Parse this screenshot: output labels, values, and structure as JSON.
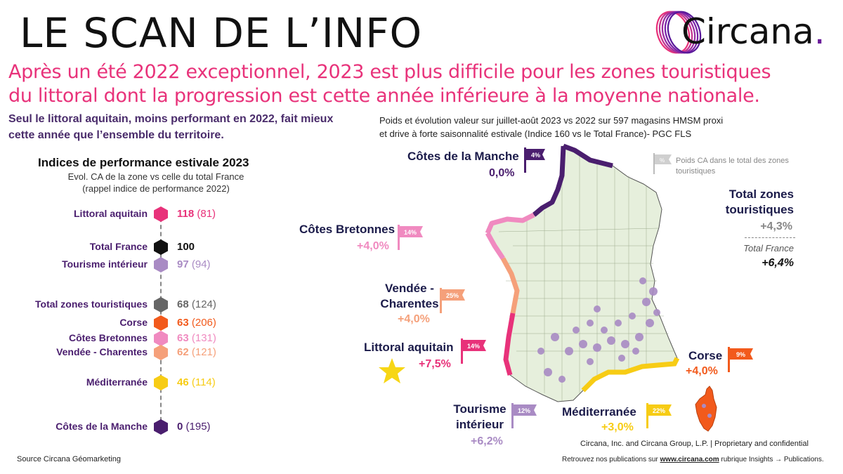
{
  "header": {
    "title": "LE SCAN DE L’INFO",
    "brand": "Circana",
    "brand_dot": "."
  },
  "headline": {
    "line1": "Après un été 2022 exceptionnel, 2023 est plus difficile pour les zones touristiques",
    "line2": "du littoral dont la progression est cette année inférieure à la moyenne nationale."
  },
  "subheadline": "Seul le littoral aquitain, moins performant en 2022, fait mieux cette année que l’ensemble du territoire.",
  "map_description": {
    "line1": "Poids et évolution valeur sur juillet-août 2023 vs 2022 sur 597 magasins HMSM proxi",
    "line2": "et drive à forte saisonnalité estivale (Indice 160 vs le Total France)- PGC FLS"
  },
  "indices": {
    "title": "Indices de performance estivale 2023",
    "subtitle": "Evol. CA de la zone vs celle du total France (rappel indice de performance 2022)",
    "rows": [
      {
        "label": "Littoral aquitain",
        "value": "118",
        "prev": "(81)",
        "color": "#e8327a"
      },
      {
        "label": "Total France",
        "value": "100",
        "prev": "",
        "color": "#111111"
      },
      {
        "label": "Tourisme intérieur",
        "value": "97",
        "prev": "(94)",
        "color": "#a98bc4"
      },
      {
        "label": "Total zones touristiques",
        "value": "68",
        "prev": "(124)",
        "color": "#666666"
      },
      {
        "label": "Corse",
        "value": "63",
        "prev": "(206)",
        "color": "#f25a1c"
      },
      {
        "label": "Côtes Bretonnes",
        "value": "63",
        "prev": "(131)",
        "color": "#f08ac0"
      },
      {
        "label": "Vendée - Charentes",
        "value": "62",
        "prev": "(121)",
        "color": "#f5a07a"
      },
      {
        "label": "Méditerranée",
        "value": "46",
        "prev": "(114)",
        "color": "#f7cc15"
      },
      {
        "label": "Côtes de la Manche",
        "value": "0",
        "prev": "(195)",
        "color": "#4a1e6e"
      }
    ]
  },
  "zones": {
    "manche": {
      "name": "Côtes de la Manche",
      "evo": "0,0%",
      "weight": "4%",
      "color": "#4a1e6e"
    },
    "bretonnes": {
      "name": "Côtes Bretonnes",
      "evo": "+4,0%",
      "weight": "14%",
      "color": "#f08ac0"
    },
    "vendee": {
      "name_1": "Vendée -",
      "name_2": "Charentes",
      "evo": "+4,0%",
      "weight": "25%",
      "color": "#f5a07a"
    },
    "aquitain": {
      "name": "Littoral aquitain",
      "evo": "+7,5%",
      "weight": "14%",
      "color": "#e8327a"
    },
    "interieur": {
      "name_1": "Tourisme",
      "name_2": "intérieur",
      "evo": "+6,2%",
      "weight": "12%",
      "color": "#a98bc4"
    },
    "mediterranee": {
      "name": "Méditerranée",
      "evo": "+3,0%",
      "weight": "22%",
      "color": "#f7cc15"
    },
    "corse": {
      "name": "Corse",
      "evo": "+4,0%",
      "weight": "9%",
      "color": "#f25a1c"
    }
  },
  "legend": {
    "symbol": "%",
    "text": "Poids CA dans le total des zones touristiques"
  },
  "totals": {
    "zones_name": "Total zones touristiques",
    "zones_evo": "+4,3%",
    "france_name": "Total France",
    "france_evo": "+6,4%"
  },
  "footer": {
    "copyright": "Circana, Inc. and Circana Group, L.P. |  Proprietary and confidential",
    "pub_prefix": "Retrouvez nos publications sur ",
    "pub_link": "www.circana.com",
    "pub_suffix": " rubrique Insights → Publications.",
    "source": "Source  Circana  Géomarketing"
  }
}
